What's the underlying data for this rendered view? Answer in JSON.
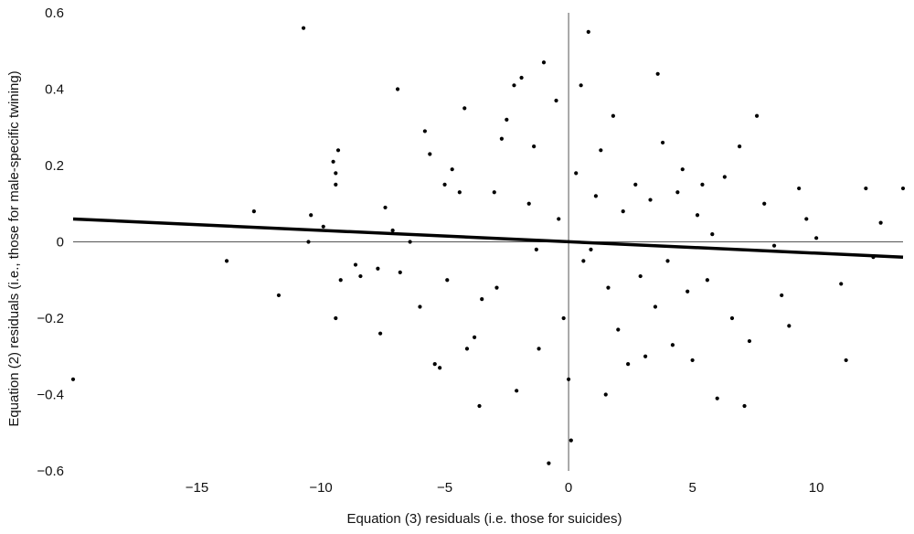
{
  "chart_data": {
    "type": "scatter",
    "xlabel": "Equation (3) residuals  (i.e. those for suicides)",
    "ylabel": "Equation (2) residuals  (i.e., those for male-specific twining)",
    "xlim": [
      -20,
      13.5
    ],
    "ylim": [
      -0.6,
      0.6
    ],
    "x_ticks": [
      -15,
      -10,
      -5,
      0,
      5,
      10
    ],
    "y_ticks": [
      -0.6,
      -0.4,
      -0.2,
      0,
      0.2,
      0.4,
      0.6
    ],
    "grid": false,
    "legend": "none",
    "trend_line": {
      "x": [
        -20,
        13.5
      ],
      "y": [
        0.06,
        -0.04
      ]
    },
    "series": [
      {
        "values": [
          [
            -20,
            -0.36
          ],
          [
            -13.8,
            -0.05
          ],
          [
            -12.7,
            0.08
          ],
          [
            -11.7,
            -0.14
          ],
          [
            -10.7,
            0.56
          ],
          [
            -10.5,
            0.0
          ],
          [
            -10.4,
            0.07
          ],
          [
            -9.9,
            0.04
          ],
          [
            -9.5,
            0.21
          ],
          [
            -9.4,
            0.18
          ],
          [
            -9.4,
            0.15
          ],
          [
            -9.4,
            -0.2
          ],
          [
            -9.3,
            0.24
          ],
          [
            -9.2,
            -0.1
          ],
          [
            -8.6,
            -0.06
          ],
          [
            -8.4,
            -0.09
          ],
          [
            -7.7,
            -0.07
          ],
          [
            -7.6,
            -0.24
          ],
          [
            -7.4,
            0.09
          ],
          [
            -7.1,
            0.03
          ],
          [
            -6.9,
            0.4
          ],
          [
            -6.8,
            -0.08
          ],
          [
            -6.4,
            0.0
          ],
          [
            -6.0,
            -0.17
          ],
          [
            -5.8,
            0.29
          ],
          [
            -5.6,
            0.23
          ],
          [
            -5.4,
            -0.32
          ],
          [
            -5.2,
            -0.33
          ],
          [
            -5.0,
            0.15
          ],
          [
            -4.9,
            -0.1
          ],
          [
            -4.7,
            0.19
          ],
          [
            -4.4,
            0.13
          ],
          [
            -4.2,
            0.35
          ],
          [
            -4.1,
            -0.28
          ],
          [
            -3.8,
            -0.25
          ],
          [
            -3.6,
            -0.43
          ],
          [
            -3.5,
            -0.15
          ],
          [
            -3.0,
            0.13
          ],
          [
            -2.9,
            -0.12
          ],
          [
            -2.7,
            0.27
          ],
          [
            -2.5,
            0.32
          ],
          [
            -2.2,
            0.41
          ],
          [
            -2.1,
            -0.39
          ],
          [
            -1.9,
            0.43
          ],
          [
            -1.6,
            0.1
          ],
          [
            -1.4,
            0.25
          ],
          [
            -1.3,
            -0.02
          ],
          [
            -1.2,
            -0.28
          ],
          [
            -1.0,
            0.47
          ],
          [
            -0.8,
            -0.58
          ],
          [
            -0.5,
            0.37
          ],
          [
            -0.4,
            0.06
          ],
          [
            -0.2,
            -0.2
          ],
          [
            0.0,
            -0.36
          ],
          [
            0.1,
            -0.52
          ],
          [
            0.3,
            0.18
          ],
          [
            0.5,
            0.41
          ],
          [
            0.6,
            -0.05
          ],
          [
            0.8,
            0.55
          ],
          [
            0.9,
            -0.02
          ],
          [
            1.1,
            0.12
          ],
          [
            1.3,
            0.24
          ],
          [
            1.5,
            -0.4
          ],
          [
            1.6,
            -0.12
          ],
          [
            1.8,
            0.33
          ],
          [
            2.0,
            -0.23
          ],
          [
            2.2,
            0.08
          ],
          [
            2.4,
            -0.32
          ],
          [
            2.7,
            0.15
          ],
          [
            2.9,
            -0.09
          ],
          [
            3.1,
            -0.3
          ],
          [
            3.3,
            0.11
          ],
          [
            3.5,
            -0.17
          ],
          [
            3.6,
            0.44
          ],
          [
            3.8,
            0.26
          ],
          [
            4.0,
            -0.05
          ],
          [
            4.2,
            -0.27
          ],
          [
            4.4,
            0.13
          ],
          [
            4.6,
            0.19
          ],
          [
            4.8,
            -0.13
          ],
          [
            5.0,
            -0.31
          ],
          [
            5.2,
            0.07
          ],
          [
            5.4,
            0.15
          ],
          [
            5.6,
            -0.1
          ],
          [
            5.8,
            0.02
          ],
          [
            6.0,
            -0.41
          ],
          [
            6.3,
            0.17
          ],
          [
            6.6,
            -0.2
          ],
          [
            6.9,
            0.25
          ],
          [
            7.1,
            -0.43
          ],
          [
            7.3,
            -0.26
          ],
          [
            7.6,
            0.33
          ],
          [
            7.9,
            0.1
          ],
          [
            8.3,
            -0.01
          ],
          [
            8.6,
            -0.14
          ],
          [
            8.9,
            -0.22
          ],
          [
            9.3,
            0.14
          ],
          [
            9.6,
            0.06
          ],
          [
            10.0,
            0.01
          ],
          [
            11.0,
            -0.11
          ],
          [
            11.2,
            -0.31
          ],
          [
            12.0,
            0.14
          ],
          [
            12.3,
            -0.04
          ],
          [
            12.6,
            0.05
          ],
          [
            13.5,
            0.14
          ]
        ]
      }
    ]
  }
}
